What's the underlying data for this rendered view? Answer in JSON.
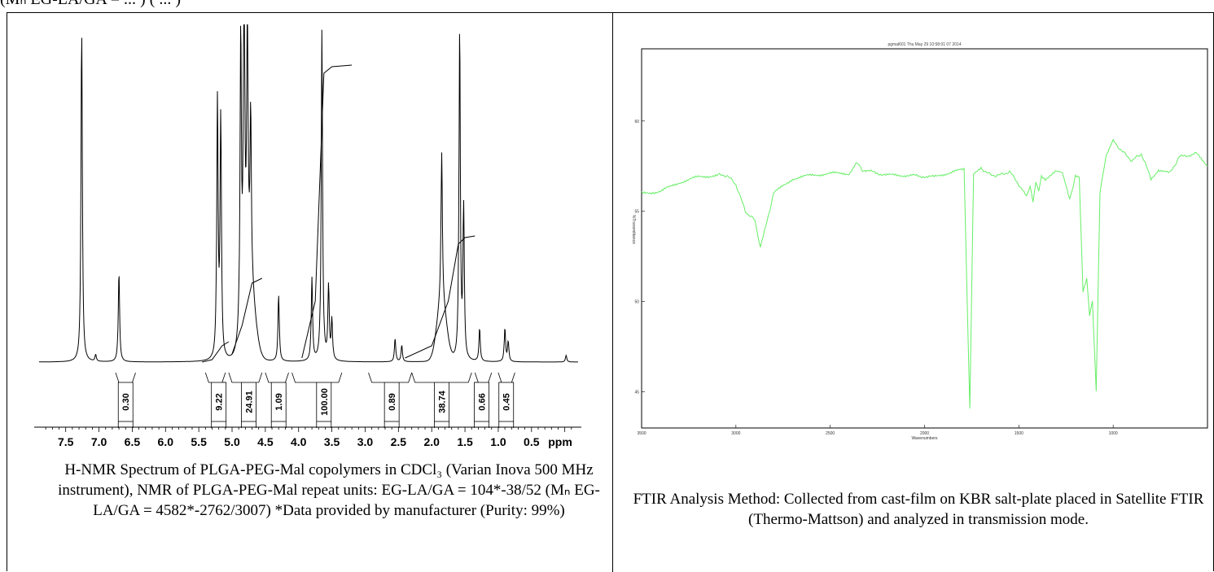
{
  "top_fragment": "(Mₙ EG-LA/GA = ... ) ( ... )",
  "nmr": {
    "caption": "H-NMR Spectrum of PLGA-PEG-Mal copolymers in CDCl₃ (Varian Inova 500 MHz instrument), NMR of PLGA-PEG-Mal repeat units: EG-LA/GA = 104*-38/52  (Mₙ EG-LA/GA = 4582*-2762/3007) *Data provided by manufacturer (Purity: 99%)"
  },
  "ftir": {
    "caption": "FTIR Analysis Method: Collected from cast-film on KBR salt-plate placed in Satellite FTIR (Thermo-Mattson) and analyzed in transmission mode.",
    "header": "pgmal601   Thu May 29 10:58:01 07 2014"
  },
  "chart_data": [
    {
      "type": "line",
      "xlabel": "ppm",
      "xlim": [
        7.9,
        -0.2
      ],
      "xticks": [
        "7.5",
        "7.0",
        "6.5",
        "6.0",
        "5.5",
        "5.0",
        "4.5",
        "4.0",
        "3.5",
        "3.0",
        "2.5",
        "2.0",
        "1.5",
        "1.0",
        "0.5"
      ],
      "integrals": [
        {
          "label": "0.30",
          "from": 6.75,
          "to": 6.45,
          "at": 6.6
        },
        {
          "label": "9.22",
          "from": 5.4,
          "to": 5.1,
          "at": 5.2
        },
        {
          "label": "24.91",
          "from": 5.05,
          "to": 4.55,
          "at": 4.75
        },
        {
          "label": "1.09",
          "from": 4.5,
          "to": 4.15,
          "at": 4.3
        },
        {
          "label": "100.00",
          "from": 4.1,
          "to": 3.35,
          "at": 3.62
        },
        {
          "label": "0.89",
          "from": 2.95,
          "to": 2.3,
          "at": 2.6
        },
        {
          "label": "38.74",
          "from": 2.3,
          "to": 1.4,
          "at": 1.85
        },
        {
          "label": "0.66",
          "from": 1.35,
          "to": 1.1,
          "at": 1.25
        },
        {
          "label": "0.45",
          "from": 1.0,
          "to": 0.75,
          "at": 0.88
        }
      ],
      "peaks": [
        {
          "x": 7.26,
          "h": 1.0
        },
        {
          "x": 7.05,
          "h": 0.02
        },
        {
          "x": 6.7,
          "h": 0.27
        },
        {
          "x": 5.22,
          "h": 0.78
        },
        {
          "x": 5.17,
          "h": 0.72
        },
        {
          "x": 4.87,
          "h": 0.88
        },
        {
          "x": 4.82,
          "h": 1.0
        },
        {
          "x": 4.77,
          "h": 0.75
        },
        {
          "x": 4.72,
          "h": 0.5
        },
        {
          "x": 4.3,
          "h": 0.2
        },
        {
          "x": 3.8,
          "h": 0.25
        },
        {
          "x": 3.65,
          "h": 1.0
        },
        {
          "x": 3.55,
          "h": 0.22
        },
        {
          "x": 3.5,
          "h": 0.12
        },
        {
          "x": 2.55,
          "h": 0.07
        },
        {
          "x": 2.45,
          "h": 0.05
        },
        {
          "x": 1.85,
          "h": 0.45
        },
        {
          "x": 1.58,
          "h": 1.0
        },
        {
          "x": 1.52,
          "h": 0.45
        },
        {
          "x": 1.28,
          "h": 0.1
        },
        {
          "x": 0.9,
          "h": 0.1
        },
        {
          "x": 0.85,
          "h": 0.06
        },
        {
          "x": -0.02,
          "h": 0.02
        }
      ]
    },
    {
      "type": "line",
      "xlabel": "Wavenumbers",
      "ylabel": "%Transmittance",
      "xlim": [
        3500,
        500
      ],
      "ylim": [
        43,
        64
      ],
      "xticks": [
        "3500",
        "3000",
        "2500",
        "2000",
        "1500",
        "1000"
      ],
      "yticks": [
        "45",
        "50",
        "55",
        "60"
      ],
      "color": "#66ee66",
      "points": [
        [
          3500,
          56.0
        ],
        [
          3400,
          56.1
        ],
        [
          3300,
          56.6
        ],
        [
          3200,
          56.9
        ],
        [
          3100,
          57.0
        ],
        [
          3050,
          57.0
        ],
        [
          3000,
          56.5
        ],
        [
          2950,
          55.0
        ],
        [
          2900,
          54.5
        ],
        [
          2870,
          53.0
        ],
        [
          2850,
          53.8
        ],
        [
          2800,
          56.0
        ],
        [
          2700,
          56.8
        ],
        [
          2600,
          57.0
        ],
        [
          2500,
          57.1
        ],
        [
          2400,
          57.1
        ],
        [
          2360,
          57.7
        ],
        [
          2330,
          57.3
        ],
        [
          2200,
          57.0
        ],
        [
          2100,
          57.0
        ],
        [
          1950,
          56.9
        ],
        [
          1850,
          57.2
        ],
        [
          1790,
          57.3
        ],
        [
          1760,
          44.0
        ],
        [
          1740,
          57.0
        ],
        [
          1700,
          57.4
        ],
        [
          1650,
          57.0
        ],
        [
          1600,
          57.0
        ],
        [
          1550,
          57.2
        ],
        [
          1480,
          56.2
        ],
        [
          1460,
          55.8
        ],
        [
          1440,
          56.3
        ],
        [
          1425,
          55.5
        ],
        [
          1410,
          56.6
        ],
        [
          1395,
          56.2
        ],
        [
          1380,
          57.0
        ],
        [
          1360,
          56.8
        ],
        [
          1300,
          57.2
        ],
        [
          1270,
          57.2
        ],
        [
          1230,
          55.6
        ],
        [
          1200,
          57.0
        ],
        [
          1180,
          56.9
        ],
        [
          1160,
          50.5
        ],
        [
          1140,
          51.2
        ],
        [
          1125,
          49.2
        ],
        [
          1110,
          50.0
        ],
        [
          1090,
          45.0
        ],
        [
          1070,
          56.0
        ],
        [
          1040,
          58.0
        ],
        [
          1000,
          58.9
        ],
        [
          950,
          58.3
        ],
        [
          900,
          57.8
        ],
        [
          850,
          58.2
        ],
        [
          800,
          56.8
        ],
        [
          760,
          57.3
        ],
        [
          700,
          57.1
        ],
        [
          650,
          58.0
        ],
        [
          560,
          58.2
        ],
        [
          500,
          57.5
        ]
      ]
    }
  ]
}
